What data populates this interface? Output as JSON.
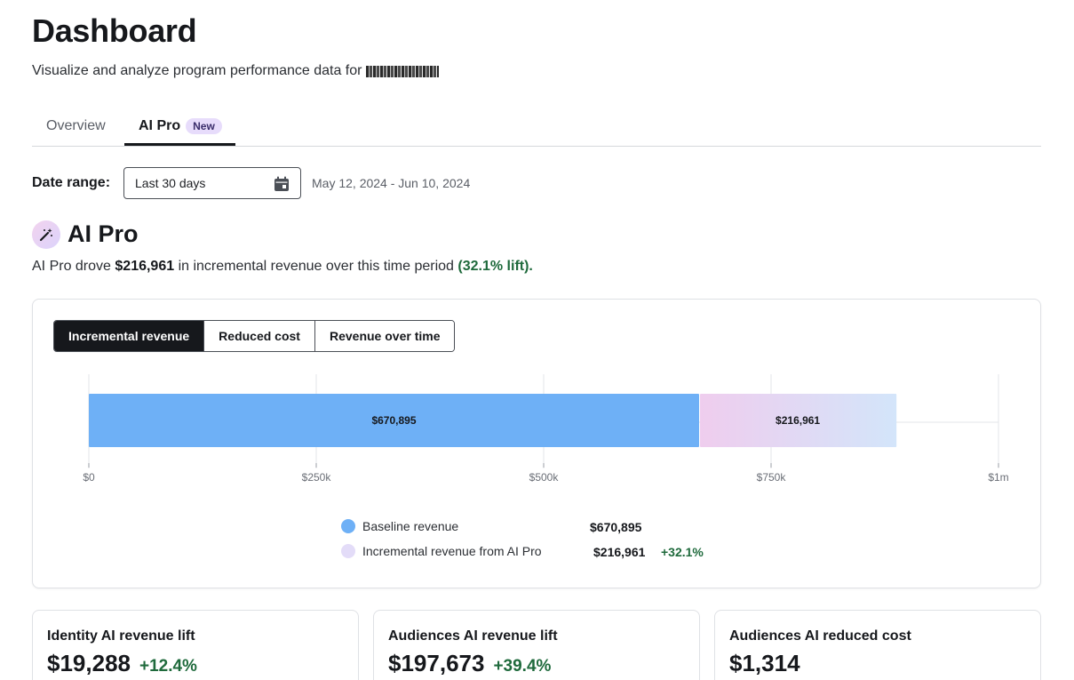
{
  "page": {
    "title": "Dashboard",
    "subtitle": "Visualize and analyze program performance data for"
  },
  "tabs": [
    {
      "label": "Overview",
      "active": false
    },
    {
      "label": "AI Pro",
      "active": true,
      "badge": "New"
    }
  ],
  "date_range": {
    "label": "Date range:",
    "selected": "Last 30 days",
    "display": "May 12, 2024 - Jun 10, 2024",
    "icon": "calendar-icon"
  },
  "section": {
    "icon": "magic-wand-icon",
    "title": "AI Pro",
    "desc_prefix": "AI Pro drove",
    "desc_amount": "$216,961",
    "desc_middle": "in incremental revenue over this time period",
    "desc_lift": "(32.1% lift)."
  },
  "segmented": [
    {
      "label": "Incremental revenue",
      "active": true
    },
    {
      "label": "Reduced cost",
      "active": false
    },
    {
      "label": "Revenue over time",
      "active": false
    }
  ],
  "chart_data": {
    "type": "bar",
    "orientation": "horizontal",
    "stacked": true,
    "categories": [
      ""
    ],
    "series": [
      {
        "name": "Baseline revenue",
        "values": [
          670895
        ],
        "label": "$670,895",
        "color": "#6eb0f6"
      },
      {
        "name": "Incremental revenue from AI Pro",
        "values": [
          216961
        ],
        "label": "$216,961",
        "color_start": "#efcdee",
        "color_end": "#d3e5fa"
      }
    ],
    "x_ticks": [
      0,
      250000,
      500000,
      750000,
      1000000
    ],
    "x_tick_labels": [
      "$0",
      "$250k",
      "$500k",
      "$750k",
      "$1m"
    ],
    "xlim": [
      0,
      1000000
    ],
    "grid": true
  },
  "legend": [
    {
      "name": "Baseline revenue",
      "value": "$670,895",
      "change": "",
      "color": "#6eb0f6"
    },
    {
      "name": "Incremental revenue from AI Pro",
      "value": "$216,961",
      "change": "+32.1%",
      "color": "#e3dcf8"
    }
  ],
  "kpis": [
    {
      "title": "Identity AI revenue lift",
      "value": "$19,288",
      "change": "+12.4%"
    },
    {
      "title": "Audiences AI revenue lift",
      "value": "$197,673",
      "change": "+39.4%"
    },
    {
      "title": "Audiences AI reduced cost",
      "value": "$1,314",
      "change": ""
    }
  ]
}
